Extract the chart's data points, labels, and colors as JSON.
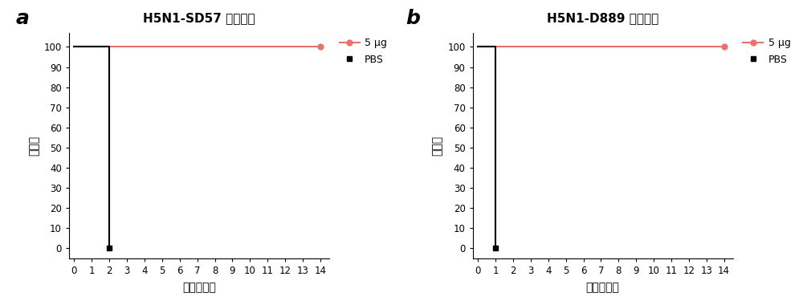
{
  "panel_a": {
    "title": "H5N1-SD57 病毒攻毒",
    "label": "a",
    "red_x": [
      0,
      14
    ],
    "red_y": [
      100,
      100
    ],
    "black_x": [
      0,
      2,
      2
    ],
    "black_y": [
      100,
      100,
      0
    ],
    "black_end_x": 2,
    "black_end_y": 0
  },
  "panel_b": {
    "title": "H5N1-D889 病毒攻毒",
    "label": "b",
    "red_x": [
      0,
      14
    ],
    "red_y": [
      100,
      100
    ],
    "black_x": [
      0,
      1,
      1
    ],
    "black_y": [
      100,
      100,
      0
    ],
    "black_end_x": 1,
    "black_end_y": 0
  },
  "xlabel": "攻毒后天数",
  "ylabel": "存活率",
  "red_color": "#E8736C",
  "black_color": "#000000",
  "legend_red": "5 μg",
  "legend_black": "PBS",
  "xlim": [
    -0.3,
    14.5
  ],
  "ylim": [
    -5,
    107
  ],
  "xticks": [
    0,
    1,
    2,
    3,
    4,
    5,
    6,
    7,
    8,
    9,
    10,
    11,
    12,
    13,
    14
  ],
  "yticks": [
    0,
    10,
    20,
    30,
    40,
    50,
    60,
    70,
    80,
    90,
    100
  ],
  "bg_color": "#ffffff",
  "title_fontsize": 11,
  "label_fontsize": 18,
  "axis_label_fontsize": 10,
  "tick_fontsize": 8.5,
  "legend_fontsize": 9,
  "linewidth": 1.5,
  "marker_size": 5
}
